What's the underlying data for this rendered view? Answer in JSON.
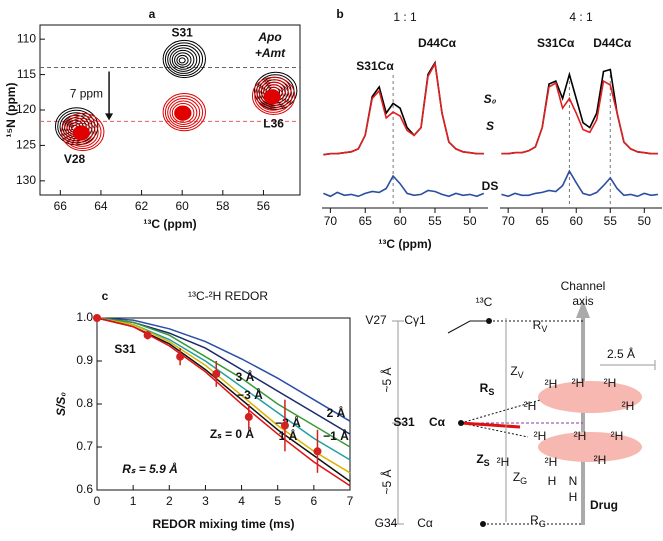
{
  "chart_data": [
    {
      "type": "contour",
      "panel": "a",
      "xlabel": "¹³C (ppm)",
      "ylabel": "¹⁵N (ppm)",
      "xlim": [
        67,
        54.2
      ],
      "ylim": [
        132,
        108
      ],
      "xticks": [
        66,
        64,
        62,
        60,
        58,
        56
      ],
      "yticks": [
        110,
        115,
        120,
        125,
        130
      ],
      "series": [
        {
          "color": "#000000",
          "x": [
            60,
            65.3,
            55.5
          ],
          "values": [
            113,
            122.5,
            117.5
          ]
        },
        {
          "color": "#e00000",
          "x": [
            60,
            65,
            55.6
          ],
          "values": [
            120.5,
            123.3,
            118.2
          ]
        }
      ],
      "peak_labels": [
        "S31",
        "V28",
        "L36"
      ],
      "hlines": [
        114,
        121.6
      ],
      "annotations": [
        "Apo",
        "+Amt",
        "7 ppm"
      ]
    },
    {
      "type": "spectrum",
      "panel": "b",
      "xlabel": "¹³C (ppm)",
      "xlim": [
        71.2,
        47.4
      ],
      "ylim": [
        -0.5,
        1.05
      ],
      "xticks": [
        70,
        65,
        60,
        55,
        50
      ],
      "x": [
        71,
        70,
        69,
        68,
        67,
        66,
        65,
        64,
        63,
        62,
        61,
        60,
        59,
        58,
        57,
        56,
        55,
        54,
        53,
        52,
        51,
        50,
        49,
        48
      ],
      "series_names": [
        "S₀",
        "S",
        "DS"
      ],
      "panels": [
        {
          "title": "1 : 1",
          "vlines": [
            61
          ],
          "annotations": [
            "S31Cα",
            "D44Cα"
          ],
          "series": [
            {
              "color": "#000000",
              "values": [
                0.02,
                0.03,
                0.03,
                0.04,
                0.05,
                0.08,
                0.22,
                0.62,
                0.72,
                0.45,
                0.55,
                0.5,
                0.3,
                0.22,
                0.3,
                0.85,
                0.97,
                0.45,
                0.15,
                0.08,
                0.05,
                0.04,
                0.03,
                0.03
              ]
            },
            {
              "color": "#e02020",
              "values": [
                0.02,
                0.03,
                0.03,
                0.04,
                0.05,
                0.08,
                0.22,
                0.6,
                0.68,
                0.4,
                0.46,
                0.42,
                0.27,
                0.22,
                0.3,
                0.83,
                0.96,
                0.45,
                0.15,
                0.08,
                0.05,
                0.04,
                0.03,
                0.03
              ]
            },
            {
              "color": "#2a4fa0",
              "values": [
                -0.38,
                -0.41,
                -0.37,
                -0.4,
                -0.39,
                -0.41,
                -0.38,
                -0.36,
                -0.37,
                -0.33,
                -0.2,
                -0.28,
                -0.38,
                -0.4,
                -0.39,
                -0.35,
                -0.36,
                -0.39,
                -0.41,
                -0.38,
                -0.4,
                -0.39,
                -0.41,
                -0.38
              ]
            }
          ]
        },
        {
          "title": "4 : 1",
          "vlines": [
            61,
            55
          ],
          "annotations": [
            "S31Cα",
            "D44Cα"
          ],
          "series": [
            {
              "color": "#000000",
              "values": [
                0.03,
                0.03,
                0.04,
                0.04,
                0.06,
                0.1,
                0.3,
                0.75,
                0.78,
                0.6,
                0.85,
                0.6,
                0.35,
                0.3,
                0.45,
                0.88,
                0.9,
                0.45,
                0.15,
                0.08,
                0.05,
                0.04,
                0.03,
                0.03
              ]
            },
            {
              "color": "#e02020",
              "values": [
                0.03,
                0.03,
                0.04,
                0.04,
                0.06,
                0.1,
                0.3,
                0.72,
                0.76,
                0.5,
                0.6,
                0.45,
                0.28,
                0.25,
                0.38,
                0.78,
                0.74,
                0.45,
                0.15,
                0.08,
                0.05,
                0.04,
                0.03,
                0.03
              ]
            },
            {
              "color": "#2a4fa0",
              "values": [
                -0.39,
                -0.41,
                -0.38,
                -0.4,
                -0.4,
                -0.38,
                -0.37,
                -0.35,
                -0.36,
                -0.3,
                -0.15,
                -0.27,
                -0.38,
                -0.4,
                -0.37,
                -0.3,
                -0.22,
                -0.33,
                -0.4,
                -0.39,
                -0.41,
                -0.38,
                -0.4,
                -0.39
              ]
            }
          ]
        }
      ]
    },
    {
      "type": "line",
      "panel": "c",
      "title": "¹³C-²H REDOR",
      "xlabel": "REDOR mixing time (ms)",
      "ylabel": "S/S₀",
      "xlim": [
        0,
        7
      ],
      "ylim": [
        0.6,
        1.0
      ],
      "xticks": [
        0,
        1,
        2,
        3,
        4,
        5,
        6,
        7
      ],
      "yticks": [
        0.6,
        0.7,
        0.8,
        0.9,
        {
          "value": 1,
          "label": "1.0"
        }
      ],
      "x": [
        0,
        1,
        2,
        3,
        4,
        5,
        6,
        7
      ],
      "series": [
        {
          "name": "3 Å",
          "color": "#2a4fa8",
          "values": [
            1,
            0.995,
            0.975,
            0.945,
            0.905,
            0.86,
            0.81,
            0.76
          ]
        },
        {
          "name": "−3 Å",
          "color": "#1a2a6a",
          "values": [
            1,
            0.99,
            0.965,
            0.93,
            0.88,
            0.83,
            0.78,
            0.73
          ]
        },
        {
          "name": "2 Å",
          "color": "#3a9a3a",
          "values": [
            1,
            0.99,
            0.96,
            0.91,
            0.86,
            0.8,
            0.75,
            0.7
          ]
        },
        {
          "name": "−2 Å",
          "color": "#20a0a0",
          "values": [
            1,
            0.985,
            0.95,
            0.9,
            0.84,
            0.78,
            0.72,
            0.67
          ]
        },
        {
          "name": "1 Å",
          "color": "#d8b400",
          "values": [
            1,
            0.985,
            0.945,
            0.89,
            0.82,
            0.75,
            0.69,
            0.64
          ]
        },
        {
          "name": "−1 Å",
          "color": "#111111",
          "values": [
            1,
            0.98,
            0.94,
            0.88,
            0.81,
            0.74,
            0.68,
            0.62
          ]
        },
        {
          "name": "Zₛ = 0 Å",
          "color": "#e01010",
          "values": [
            1,
            0.98,
            0.935,
            0.875,
            0.8,
            0.73,
            0.665,
            0.61
          ]
        }
      ],
      "experiment": {
        "color": "#d42020",
        "x": [
          0,
          1.4,
          2.3,
          3.3,
          4.2,
          5.2,
          6.1
        ],
        "values": [
          1,
          0.96,
          0.91,
          0.87,
          0.77,
          0.75,
          0.69
        ],
        "errors": [
          0,
          0.01,
          0.02,
          0.03,
          0.03,
          0.06,
          0.05
        ]
      },
      "annotations": [
        "S31",
        "Rₛ = 5.9 Å"
      ]
    }
  ],
  "diagram": {
    "labels": [
      "Channel",
      "axis",
      "¹³C",
      "V27",
      "Cγ1",
      "RV",
      "2.5 Å",
      "ZV",
      "~5 Å",
      "RS",
      "²H",
      "²H",
      "²H",
      "²H",
      "²H",
      "S31",
      "Cα",
      "²H",
      "²H",
      "²H",
      "²H",
      "²H",
      "²H",
      "ZS",
      "~5 Å",
      "ZG",
      "H",
      "N",
      "H",
      "Drug",
      "G34",
      "Cα",
      "RG"
    ]
  }
}
